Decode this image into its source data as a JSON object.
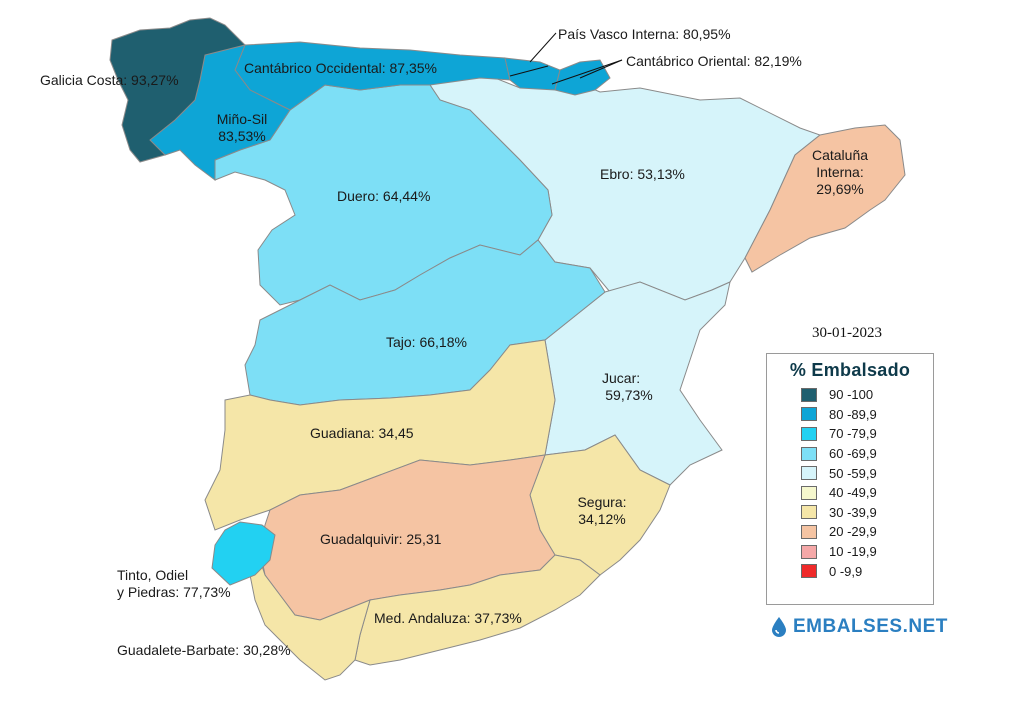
{
  "date": "30-01-2023",
  "legend": {
    "title": "% Embalsado",
    "items": [
      {
        "label": "90 -100",
        "color": "#1f5f6f"
      },
      {
        "label": "80 -89,9",
        "color": "#0ea5d6"
      },
      {
        "label": "70 -79,9",
        "color": "#22d1f2"
      },
      {
        "label": "60 -69,9",
        "color": "#7ddff6"
      },
      {
        "label": "50 -59,9",
        "color": "#d6f4fa"
      },
      {
        "label": "40 -49,9",
        "color": "#f5f7cd"
      },
      {
        "label": "30 -39,9",
        "color": "#f5e6a8"
      },
      {
        "label": "20 -29,9",
        "color": "#f5c4a3"
      },
      {
        "label": "10 -19,9",
        "color": "#f5a8a8"
      },
      {
        "label": "0 -9,9",
        "color": "#ef2a2a"
      }
    ]
  },
  "basins": {
    "galicia": {
      "label": "Galicia Costa: 93,27%",
      "value": 93.27,
      "color": "#1f5f6f"
    },
    "mino": {
      "line1": "Miño-Sil",
      "line2": "83,53%",
      "value": 83.53,
      "color": "#0ea5d6"
    },
    "cantabrico_occ": {
      "label": "Cantábrico Occidental: 87,35%",
      "value": 87.35,
      "color": "#0ea5d6"
    },
    "pais_vasco": {
      "label": "País Vasco Interna: 80,95%",
      "value": 80.95,
      "color": "#0ea5d6"
    },
    "cantabrico_ori": {
      "label": "Cantábrico Oriental: 82,19%",
      "value": 82.19,
      "color": "#0ea5d6"
    },
    "duero": {
      "label": "Duero: 64,44%",
      "value": 64.44,
      "color": "#7ddff6"
    },
    "ebro": {
      "label": "Ebro: 53,13%",
      "value": 53.13,
      "color": "#d6f4fa"
    },
    "cataluna": {
      "line1": "Cataluña",
      "line2": "Interna:",
      "line3": "29,69%",
      "value": 29.69,
      "color": "#f5c4a3"
    },
    "tajo": {
      "label": "Tajo: 66,18%",
      "value": 66.18,
      "color": "#7ddff6"
    },
    "jucar": {
      "line1": "Jucar:",
      "line2": "59,73%",
      "value": 59.73,
      "color": "#d6f4fa"
    },
    "guadiana": {
      "label": "Guadiana: 34,45",
      "value": 34.45,
      "color": "#f5e6a8"
    },
    "guadalquivir": {
      "label": "Guadalquivir: 25,31",
      "value": 25.31,
      "color": "#f5c4a3"
    },
    "segura": {
      "line1": "Segura:",
      "line2": "34,12%",
      "value": 34.12,
      "color": "#f5e6a8"
    },
    "tinto": {
      "line1": "Tinto, Odiel",
      "line2": "y Piedras: 77,73%",
      "value": 77.73,
      "color": "#22d1f2"
    },
    "med_andaluza": {
      "label": "Med. Andaluza: 37,73%",
      "value": 37.73,
      "color": "#f5e6a8"
    },
    "guadalete": {
      "label": "Guadalete-Barbate: 30,28%",
      "value": 30.28,
      "color": "#f5e6a8"
    }
  },
  "brand": {
    "name": "EMBALSES.NET",
    "icon": "water-drop-icon",
    "color": "#2b7fc1"
  }
}
